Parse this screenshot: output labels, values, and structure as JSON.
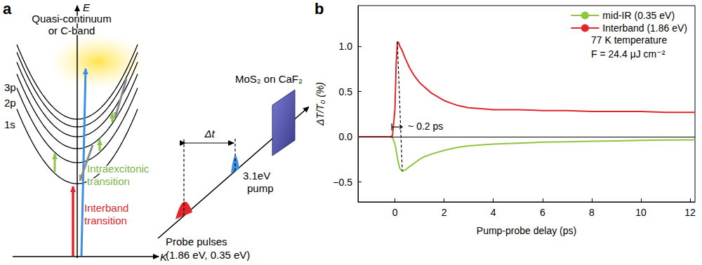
{
  "panel_a": {
    "label": "a",
    "energy_axis": "E",
    "momentum_axis": "K",
    "band_label": [
      "Quasi-continuum",
      "or C-band"
    ],
    "levels": [
      "3p",
      "2p",
      "1s"
    ],
    "intraexcitonic": [
      "Intraexcitonic",
      "transition"
    ],
    "interband": [
      "Interband",
      "transition"
    ],
    "delay": "Δt",
    "sample": "MoS₂ on CaF₂",
    "pump": [
      "3.1eV",
      "pump"
    ],
    "probe": [
      "Probe pulses",
      "(1.86 eV, 0.35 eV)"
    ]
  },
  "chart_data": {
    "type": "line",
    "panel_label": "b",
    "x_label": "Pump-probe delay (ps)",
    "y_label": "ΔT/T₀ (%)",
    "x": [
      -1.5,
      -1,
      -0.5,
      -0.2,
      -0.1,
      0,
      0.05,
      0.1,
      0.15,
      0.2,
      0.3,
      0.4,
      0.5,
      0.6,
      0.8,
      1,
      1.2,
      1.5,
      2,
      2.5,
      3,
      3.5,
      4,
      5,
      6,
      7,
      8,
      9,
      10,
      11,
      12.2
    ],
    "series": [
      {
        "name": "mid-IR (0.35 eV)",
        "color": "#8dc63f",
        "values": [
          0,
          0,
          0,
          0,
          -0.01,
          -0.08,
          -0.15,
          -0.23,
          -0.3,
          -0.35,
          -0.38,
          -0.37,
          -0.35,
          -0.33,
          -0.29,
          -0.25,
          -0.22,
          -0.19,
          -0.15,
          -0.12,
          -0.1,
          -0.09,
          -0.08,
          -0.07,
          -0.06,
          -0.055,
          -0.05,
          -0.045,
          -0.04,
          -0.037,
          -0.035
        ]
      },
      {
        "name": "Interband (1.86 eV)",
        "color": "#e0262c",
        "values": [
          0,
          0,
          0,
          0,
          0.01,
          0.3,
          0.8,
          1.05,
          1.04,
          1.0,
          0.95,
          0.88,
          0.82,
          0.76,
          0.67,
          0.6,
          0.55,
          0.48,
          0.4,
          0.35,
          0.32,
          0.31,
          0.3,
          0.3,
          0.29,
          0.29,
          0.28,
          0.28,
          0.28,
          0.27,
          0.27
        ]
      }
    ],
    "xlim": [
      -1.5,
      12.2
    ],
    "xticks": [
      0,
      2,
      4,
      6,
      8,
      10,
      12
    ],
    "ylim": [
      -0.72,
      1.45
    ],
    "yticks": [
      {
        "value": -0.5,
        "label": "−0.5"
      },
      {
        "value": 0,
        "label": "0.0"
      },
      0.5,
      {
        "value": 1,
        "label": "1.0"
      }
    ],
    "baseline": 0,
    "notes": [
      "77 K temperature",
      "F = 24.4 μJ cm⁻²"
    ],
    "delay_label": "~ 0.2 ps",
    "legend": "upper right",
    "grid": false
  }
}
